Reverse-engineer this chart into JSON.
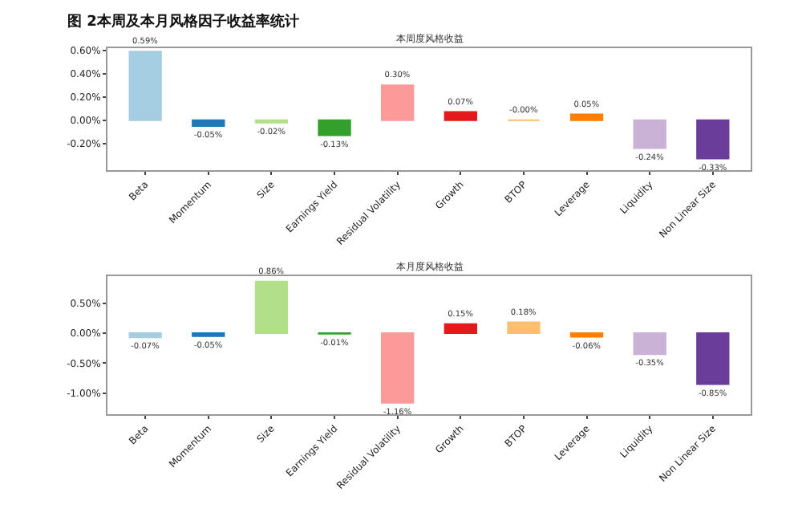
{
  "chart_data": [
    {
      "type": "bar",
      "title": "本周度风格收益",
      "annotations": [
        "图 2本周及本月风格因子收益率统计"
      ],
      "categories": [
        "Beta",
        "Momentum",
        "Size",
        "Earnings Yield",
        "Residual Volatility",
        "Growth",
        "BTOP",
        "Leverage",
        "Liquidity",
        "Non Linear Size"
      ],
      "values": [
        0.59,
        -0.05,
        -0.02,
        -0.13,
        0.3,
        0.07,
        -0.0,
        0.05,
        -0.24,
        -0.33
      ],
      "value_labels": [
        "0.59%",
        "-0.05%",
        "-0.02%",
        "-0.13%",
        "0.30%",
        "0.07%",
        "-0.00%",
        "0.05%",
        "-0.24%",
        "-0.33%"
      ],
      "colors": [
        "#a6cee3",
        "#1f78b4",
        "#b2df8a",
        "#33a02c",
        "#fb9a99",
        "#e31a1c",
        "#fdbf6f",
        "#ff7f00",
        "#cab2d6",
        "#6a3d9a"
      ],
      "ylim": [
        -0.43,
        0.62
      ],
      "yticks": [
        {
          "value": 0.6,
          "label": "0.60%"
        },
        {
          "value": 0.4,
          "label": "0.40%"
        },
        {
          "value": 0.2,
          "label": "0.20%"
        },
        {
          "value": 0,
          "label": "0.00%"
        },
        {
          "value": -0.2,
          "label": "-0.20%"
        }
      ]
    },
    {
      "type": "bar",
      "title": "本月度风格收益",
      "categories": [
        "Beta",
        "Momentum",
        "Size",
        "Earnings Yield",
        "Residual Volatility",
        "Growth",
        "BTOP",
        "Leverage",
        "Liquidity",
        "Non Linear Size"
      ],
      "values": [
        -0.07,
        -0.05,
        0.86,
        -0.01,
        -1.16,
        0.15,
        0.18,
        -0.06,
        -0.35,
        -0.85
      ],
      "value_labels": [
        "-0.07%",
        "-0.05%",
        "0.86%",
        "-0.01%",
        "-1.16%",
        "0.15%",
        "0.18%",
        "-0.06%",
        "-0.35%",
        "-0.85%"
      ],
      "colors": [
        "#a6cee3",
        "#1f78b4",
        "#b2df8a",
        "#33a02c",
        "#fb9a99",
        "#e31a1c",
        "#fdbf6f",
        "#ff7f00",
        "#cab2d6",
        "#6a3d9a"
      ],
      "ylim": [
        -1.35,
        0.95
      ],
      "yticks": [
        {
          "value": 0.5,
          "label": "0.50%"
        },
        {
          "value": 0,
          "label": "0.00%"
        },
        {
          "value": -0.5,
          "label": "-0.50%"
        },
        {
          "value": -1.0,
          "label": "-1.00%"
        }
      ]
    }
  ]
}
